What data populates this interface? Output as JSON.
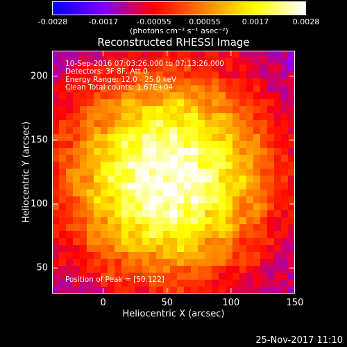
{
  "colorbar": {
    "ticks": [
      "-0.0028",
      "-0.0017",
      "-0.00055",
      "0.00055",
      "0.0017",
      "0.0028"
    ],
    "unit": "(photons cm⁻² s⁻¹ asec⁻²)"
  },
  "chart_data": {
    "type": "heatmap",
    "title": "Reconstructed RHESSI Image",
    "xlabel": "Heliocentric X (arcsec)",
    "ylabel": "Heliocentric Y (arcsec)",
    "xlim": [
      -40,
      150
    ],
    "ylim": [
      30,
      220
    ],
    "xticks": [
      0,
      50,
      100,
      150
    ],
    "yticks": [
      50,
      100,
      150,
      200
    ],
    "clim": [
      -0.0028,
      0.0028
    ],
    "peak": [
      50,
      122
    ],
    "colormap": [
      "#0000ff",
      "#7f00ff",
      "#ff0000",
      "#ff8000",
      "#ffff00",
      "#ffffff"
    ]
  },
  "annotations": {
    "time_range": "10-Sep-2016 07:03:26.000 to 07:13:26.000",
    "detectors": "Detectors: 3F 8F, Att 0",
    "energy": "Energy Range: 12.0 - 25.0 keV",
    "clean": "Clean    Total counts: 1.67E+04",
    "peak_text": "Position of Peak = [50,122]"
  },
  "footer_date": "25-Nov-2017 11:10"
}
